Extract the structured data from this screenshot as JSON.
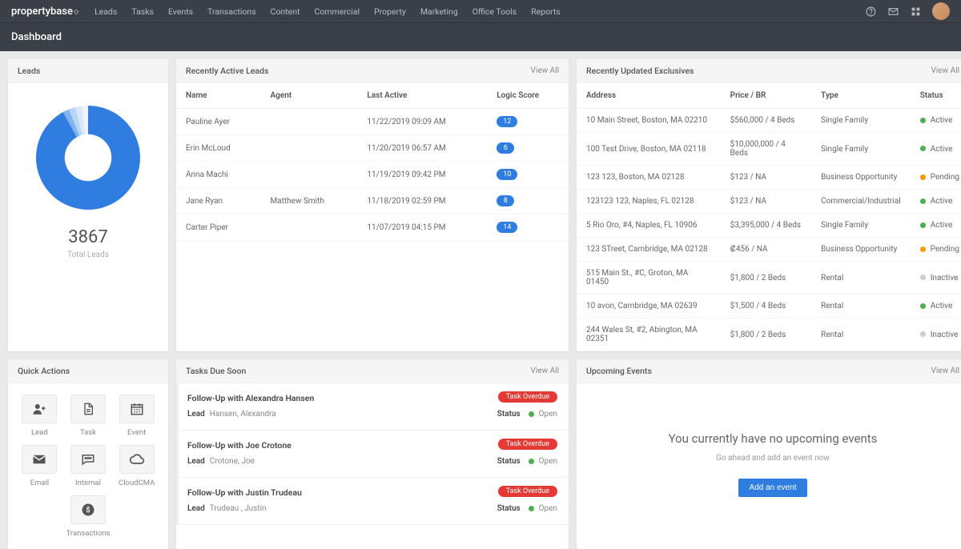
{
  "brand": "propertybase",
  "nav": [
    "Leads",
    "Tasks",
    "Events",
    "Transactions",
    "Content",
    "Commercial",
    "Property",
    "Marketing",
    "Office Tools",
    "Reports"
  ],
  "page_title": "Dashboard",
  "view_all": "View All",
  "leads_card": {
    "title": "Leads",
    "total": "3867",
    "total_label": "Total Leads",
    "donut": {
      "segments": [
        {
          "color": "#2f7de1",
          "pct": 92
        },
        {
          "color": "#7fb4ee",
          "pct": 2
        },
        {
          "color": "#b6d4f4",
          "pct": 2
        },
        {
          "color": "#d9e8f9",
          "pct": 2
        },
        {
          "color": "#eef4fc",
          "pct": 2
        }
      ],
      "hole_color": "#ffffff",
      "size": 150,
      "hole_ratio": 0.45
    }
  },
  "active_leads": {
    "title": "Recently Active Leads",
    "columns": [
      "Name",
      "Agent",
      "Last Active",
      "Logic Score"
    ],
    "rows": [
      {
        "name": "Pauline Ayer",
        "agent": "",
        "last": "11/22/2019 09:09 AM",
        "score": "12"
      },
      {
        "name": "Erin McLoud",
        "agent": "",
        "last": "11/20/2019 06:57 AM",
        "score": "6"
      },
      {
        "name": "Anna Machi",
        "agent": "",
        "last": "11/19/2019 09:42 PM",
        "score": "10"
      },
      {
        "name": "Jane Ryan",
        "agent": "Matthew Smith",
        "last": "11/18/2019 02:59 PM",
        "score": "8"
      },
      {
        "name": "Carter Piper",
        "agent": "",
        "last": "11/07/2019 04:15 PM",
        "score": "14"
      }
    ]
  },
  "exclusives": {
    "title": "Recently Updated Exclusives",
    "columns": [
      "Address",
      "Price / BR",
      "Type",
      "Status"
    ],
    "rows": [
      {
        "address": "10 Main Street, Boston, MA 02210",
        "price": "$560,000 / 4 Beds",
        "type": "Single Family",
        "status": "Active",
        "dot": "green"
      },
      {
        "address": "100 Test Drive, Boston, MA 02118",
        "price": "$10,000,000 / 4 Beds",
        "type": "Single Family",
        "status": "Active",
        "dot": "green"
      },
      {
        "address": "123 123, Boston, MA 02128",
        "price": "$123 / NA",
        "type": "Business Opportunity",
        "status": "Pending",
        "dot": "orange"
      },
      {
        "address": "123123 123, Naples, FL 02128",
        "price": "$123 / NA",
        "type": "Commercial/Industrial",
        "status": "Active",
        "dot": "green"
      },
      {
        "address": "5 Rio Oro, #4, Naples, FL 10906",
        "price": "$3,395,000 / 4 Beds",
        "type": "Single Family",
        "status": "Active",
        "dot": "green"
      },
      {
        "address": "123 STreet, Cambridge, MA 02128",
        "price": "₡456 / NA",
        "type": "Business Opportunity",
        "status": "Pending",
        "dot": "orange"
      },
      {
        "address": "515 Main St., #C, Groton, MA 01450",
        "price": "$1,800 / 2 Beds",
        "type": "Rental",
        "status": "Inactive",
        "dot": "grey"
      },
      {
        "address": "10 avon, Cambridge, MA 02639",
        "price": "$1,500 / 4 Beds",
        "type": "Rental",
        "status": "Active",
        "dot": "green"
      },
      {
        "address": "244 Wales St, #2, Abington, MA 02351",
        "price": "$1,800 / 2 Beds",
        "type": "Rental",
        "status": "Inactive",
        "dot": "grey"
      }
    ]
  },
  "quick_actions": {
    "title": "Quick Actions",
    "items": [
      {
        "label": "Lead",
        "icon": "user-plus"
      },
      {
        "label": "Task",
        "icon": "file"
      },
      {
        "label": "Event",
        "icon": "calendar"
      },
      {
        "label": "Email",
        "icon": "envelope"
      },
      {
        "label": "Internal",
        "icon": "chat"
      },
      {
        "label": "CloudCMA",
        "icon": "cloud"
      }
    ],
    "wide": {
      "label": "Transactions",
      "icon": "dollar"
    }
  },
  "tasks": {
    "title": "Tasks Due Soon",
    "overdue_label": "Task Overdue",
    "lead_label": "Lead",
    "status_label": "Status",
    "open_label": "Open",
    "items": [
      {
        "title": "Follow-Up with Alexandra Hansen",
        "lead": "Hansen, Alexandra"
      },
      {
        "title": "Follow-Up with Joe Crotone",
        "lead": "Crotone, Joe"
      },
      {
        "title": "Follow-Up with Justin Trudeau",
        "lead": "Trudeau , Justin"
      }
    ]
  },
  "events": {
    "title": "Upcoming Events",
    "empty_heading": "You currently have no upcoming events",
    "empty_sub": "Go ahead and add an event now",
    "button": "Add an event"
  },
  "colors": {
    "topbar": "#3a3f48",
    "page_bg": "#e8e9eb",
    "primary": "#2f7de1",
    "danger": "#e53935",
    "green": "#4caf50",
    "orange": "#ff9800",
    "grey": "#cccccc"
  }
}
